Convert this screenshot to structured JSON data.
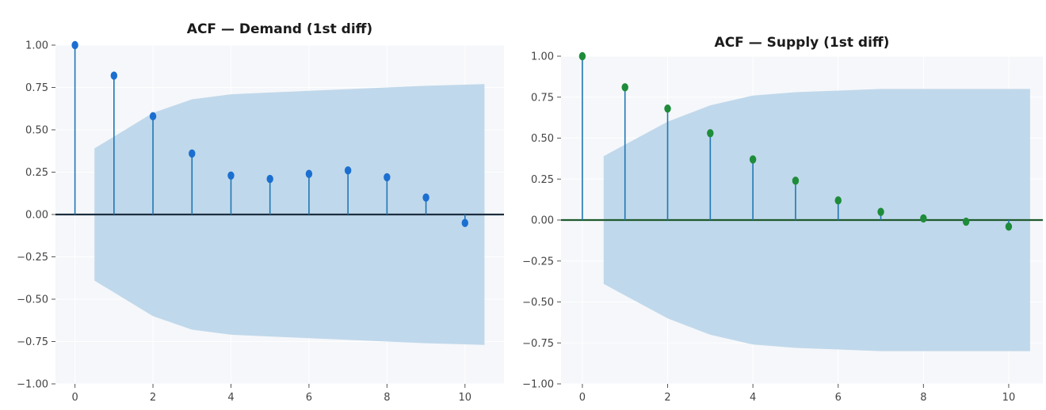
{
  "chart_data": [
    {
      "type": "stem",
      "title": "ACF — Demand (1st diff)",
      "xlabel": "",
      "ylabel": "",
      "x": [
        0,
        1,
        2,
        3,
        4,
        5,
        6,
        7,
        8,
        9,
        10
      ],
      "values": [
        1.0,
        0.82,
        0.58,
        0.36,
        0.23,
        0.21,
        0.24,
        0.26,
        0.22,
        0.1,
        -0.05
      ],
      "confidence_band": {
        "x": [
          0.5,
          1,
          2,
          3,
          4,
          5,
          6,
          7,
          8,
          9,
          10.5
        ],
        "upper": [
          0.39,
          0.46,
          0.6,
          0.68,
          0.71,
          0.72,
          0.73,
          0.74,
          0.75,
          0.76,
          0.77
        ]
      },
      "xlim": [
        -0.5,
        11
      ],
      "ylim": [
        -1.0,
        1.0
      ],
      "xticks": [
        "0",
        "2",
        "4",
        "6",
        "8",
        "10"
      ],
      "yticks": [
        "1.00",
        "0.75",
        "0.50",
        "0.25",
        "0.00",
        "−0.25",
        "−0.50",
        "−0.75",
        "−1.00"
      ],
      "grid": true,
      "colors": {
        "stem": "#1f77b4",
        "marker": "#1b6fd0",
        "zero_line": "#1c2e40",
        "band": "#bdd6ea",
        "plot_bg": "#f5f7fa"
      }
    },
    {
      "type": "stem",
      "title": "ACF — Supply (1st diff)",
      "xlabel": "",
      "ylabel": "",
      "x": [
        0,
        1,
        2,
        3,
        4,
        5,
        6,
        7,
        8,
        9,
        10
      ],
      "values": [
        1.0,
        0.81,
        0.68,
        0.53,
        0.37,
        0.24,
        0.12,
        0.05,
        0.01,
        -0.01,
        -0.04
      ],
      "confidence_band": {
        "x": [
          0.5,
          1,
          2,
          3,
          4,
          5,
          6,
          7,
          8,
          9,
          10.5
        ],
        "upper": [
          0.39,
          0.46,
          0.6,
          0.7,
          0.76,
          0.78,
          0.79,
          0.8,
          0.8,
          0.8,
          0.8
        ]
      },
      "xlim": [
        -0.5,
        10.8
      ],
      "ylim": [
        -1.0,
        1.0
      ],
      "xticks": [
        "0",
        "2",
        "4",
        "6",
        "8",
        "10"
      ],
      "yticks": [
        "1.00",
        "0.75",
        "0.50",
        "0.25",
        "0.00",
        "−0.25",
        "−0.50",
        "−0.75",
        "−1.00"
      ],
      "grid": true,
      "colors": {
        "stem": "#1f77b4",
        "marker": "#1e8c3a",
        "zero_line": "#1f5a2e",
        "band": "#bdd6ea",
        "plot_bg": "#f5f7fa"
      }
    }
  ]
}
